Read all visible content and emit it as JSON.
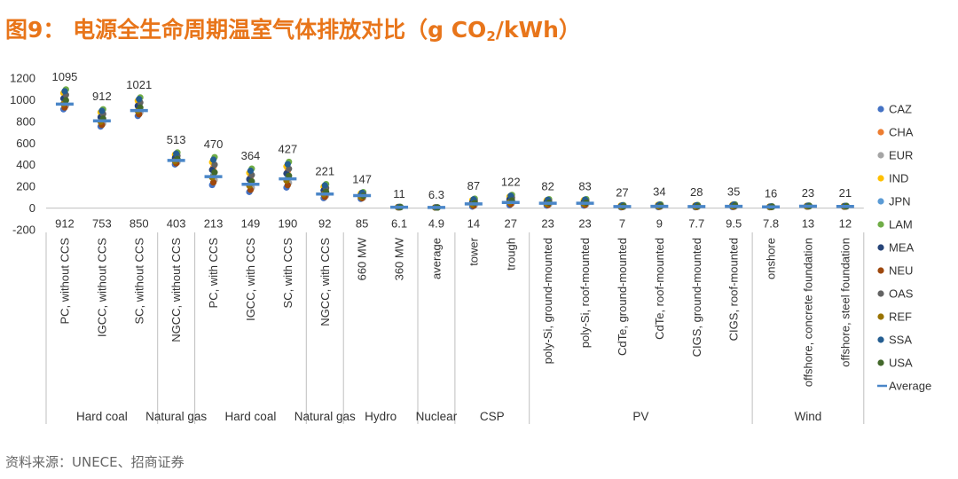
{
  "header": {
    "title_pre": "图9：  电源全生命周期温室气体排放对比（g CO",
    "title_sub": "2",
    "title_post": "/kWh）"
  },
  "footer": {
    "source": "资料来源：UNECE、招商证券"
  },
  "colors": {
    "CAZ": "#4472c4",
    "CHA": "#ed7d31",
    "EUR": "#a5a5a5",
    "IND": "#ffc000",
    "JPN": "#5b9bd5",
    "LAM": "#70ad47",
    "MEA": "#264478",
    "NEU": "#9e480e",
    "OAS": "#636363",
    "REF": "#997300",
    "SSA": "#255e91",
    "USA": "#43682b",
    "Average": "#4a86c8",
    "axis": "#bfbfbf",
    "text": "#333333"
  },
  "chart_data": {
    "type": "scatter",
    "title": "",
    "xlabel": "",
    "ylabel": "",
    "ylim": [
      -200,
      1200
    ],
    "yticks": [
      -200,
      0,
      200,
      400,
      600,
      800,
      1000,
      1200
    ],
    "grid": false,
    "legend_position": "right",
    "legend": [
      "CAZ",
      "CHA",
      "EUR",
      "IND",
      "JPN",
      "LAM",
      "MEA",
      "NEU",
      "OAS",
      "REF",
      "SSA",
      "USA",
      "Average"
    ],
    "categories": [
      {
        "label": "PC, without CCS",
        "group": "Hard coal",
        "max": 1095,
        "min": 912,
        "avg": 960
      },
      {
        "label": "IGCC, without CCS",
        "group": "Hard coal",
        "max": 912,
        "min": 753,
        "avg": 805
      },
      {
        "label": "SC, without CCS",
        "group": "Hard coal",
        "max": 1021,
        "min": 850,
        "avg": 900
      },
      {
        "label": "NGCC, without CCS",
        "group": "Natural gas",
        "max": 513,
        "min": 403,
        "avg": 440
      },
      {
        "label": "PC, with CCS",
        "group": "Hard coal",
        "max": 470,
        "min": 213,
        "avg": 290
      },
      {
        "label": "IGCC, with CCS",
        "group": "Hard coal",
        "max": 364,
        "min": 149,
        "avg": 220
      },
      {
        "label": "SC, with CCS",
        "group": "Hard coal",
        "max": 427,
        "min": 190,
        "avg": 270
      },
      {
        "label": "NGCC, with CCS",
        "group": "Natural gas",
        "max": 221,
        "min": 92,
        "avg": 130
      },
      {
        "label": "660 MW",
        "group": "Hydro",
        "max": 147,
        "min": 85,
        "avg": 115
      },
      {
        "label": "360 MW",
        "group": "Hydro",
        "max": 11,
        "min": 6.1,
        "avg": 8
      },
      {
        "label": "average",
        "group": "Nuclear",
        "max": 6.3,
        "min": 4.9,
        "avg": 5.5
      },
      {
        "label": "tower",
        "group": "CSP",
        "max": 87,
        "min": 14,
        "avg": 38
      },
      {
        "label": "trough",
        "group": "CSP",
        "max": 122,
        "min": 27,
        "avg": 52
      },
      {
        "label": "poly-Si, ground-mounted",
        "group": "PV",
        "max": 82,
        "min": 23,
        "avg": 45
      },
      {
        "label": "poly-Si, roof-mounted",
        "group": "PV",
        "max": 83,
        "min": 23,
        "avg": 45
      },
      {
        "label": "CdTe, ground-mounted",
        "group": "PV",
        "max": 27,
        "min": 7,
        "avg": 14
      },
      {
        "label": "CdTe, roof-mounted",
        "group": "PV",
        "max": 34,
        "min": 9,
        "avg": 16
      },
      {
        "label": "CIGS, ground-mounted",
        "group": "PV",
        "max": 28,
        "min": 7.7,
        "avg": 14
      },
      {
        "label": "CIGS, roof-mounted",
        "group": "PV",
        "max": 35,
        "min": 9.5,
        "avg": 16
      },
      {
        "label": "onshore",
        "group": "Wind",
        "max": 16,
        "min": 7.8,
        "avg": 11
      },
      {
        "label": "offshore, concrete foundation",
        "group": "Wind",
        "max": 23,
        "min": 13,
        "avg": 17
      },
      {
        "label": "offshore, steel foundation",
        "group": "Wind",
        "max": 21,
        "min": 12,
        "avg": 15
      }
    ],
    "max_labels": [
      "1095",
      "912",
      "1021",
      "513",
      "470",
      "364",
      "427",
      "221",
      "147",
      "11",
      "6.3",
      "87",
      "122",
      "82",
      "83",
      "27",
      "34",
      "28",
      "35",
      "16",
      "23",
      "21"
    ],
    "min_labels": [
      "912",
      "753",
      "850",
      "403",
      "213",
      "149",
      "190",
      "92",
      "85",
      "6.1",
      "4.9",
      "14",
      "27",
      "23",
      "23",
      "7",
      "9",
      "7.7",
      "9.5",
      "7.8",
      "13",
      "12"
    ],
    "groups": [
      {
        "name": "Hard coal",
        "span": [
          0,
          3
        ]
      },
      {
        "name": "Natural gas",
        "span": [
          3,
          4
        ]
      },
      {
        "name": "Hard coal",
        "span": [
          4,
          7
        ]
      },
      {
        "name": "Natural gas",
        "span": [
          7,
          8
        ]
      },
      {
        "name": "Hydro",
        "span": [
          8,
          10
        ]
      },
      {
        "name": "Nuclear",
        "span": [
          10,
          11
        ]
      },
      {
        "name": "CSP",
        "span": [
          11,
          13
        ]
      },
      {
        "name": "PV",
        "span": [
          13,
          19
        ]
      },
      {
        "name": "Wind",
        "span": [
          19,
          22
        ]
      }
    ]
  }
}
